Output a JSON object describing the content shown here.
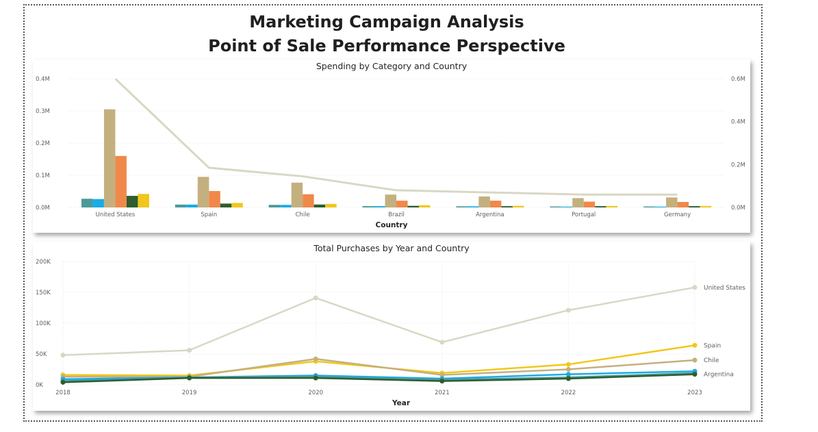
{
  "header": {
    "title_line1": "Marketing Campaign Analysis",
    "title_line2": "Point of Sale Performance Perspective"
  },
  "chart_data": [
    {
      "type": "bar",
      "title": "Spending by Category and Country",
      "xlabel": "Country",
      "ylabel": "",
      "categories": [
        "United States",
        "Spain",
        "Chile",
        "Brazil",
        "Argentina",
        "Portugal",
        "Germany"
      ],
      "series": [
        {
          "values": [
            27000,
            9000,
            8000,
            4000,
            3500,
            3000,
            3000
          ],
          "color": "#4a9a9a"
        },
        {
          "values": [
            26000,
            9000,
            8000,
            4000,
            3500,
            2500,
            2500
          ],
          "color": "#1aabe8"
        },
        {
          "values": [
            305000,
            95000,
            77000,
            40000,
            34000,
            29000,
            31000
          ],
          "color": "#c4b07e"
        },
        {
          "values": [
            160000,
            51000,
            41000,
            21000,
            21000,
            18000,
            17000
          ],
          "color": "#f0884a"
        },
        {
          "values": [
            36000,
            12000,
            9000,
            5000,
            4000,
            4000,
            4000
          ],
          "color": "#2e5d2e"
        },
        {
          "values": [
            42000,
            14000,
            11000,
            7000,
            5000,
            4500,
            4500
          ],
          "color": "#f2c71b"
        }
      ],
      "line": {
        "values": [
          600000,
          185000,
          145000,
          80000,
          70000,
          60000,
          60000
        ],
        "color": "#d9d7c4"
      },
      "ylim": [
        0,
        400000
      ],
      "y2lim": [
        0,
        600000
      ],
      "yticks": [
        "0.0M",
        "0.1M",
        "0.2M",
        "0.3M",
        "0.4M"
      ],
      "y2ticks": [
        "0.0M",
        "0.2M",
        "0.4M",
        "0.6M"
      ],
      "grid": true
    },
    {
      "type": "line",
      "title": "Total Purchases by Year and Country",
      "xlabel": "Year",
      "ylabel": "",
      "x": [
        "2018",
        "2019",
        "2020",
        "2021",
        "2022",
        "2023"
      ],
      "ylim": [
        0,
        200000
      ],
      "yticks": [
        "0K",
        "50K",
        "100K",
        "150K",
        "200K"
      ],
      "series": [
        {
          "name": "United States",
          "values": [
            48000,
            56000,
            141000,
            69000,
            121000,
            158000
          ],
          "color": "#d9d7c4"
        },
        {
          "name": "Spain",
          "values": [
            16000,
            15000,
            38000,
            19000,
            33000,
            64000
          ],
          "color": "#f2c71b"
        },
        {
          "name": "Chile",
          "values": [
            13000,
            13000,
            42000,
            16000,
            25000,
            40000
          ],
          "color": "#c4b07e"
        },
        {
          "name": "",
          "values": [
            9000,
            12000,
            15000,
            10000,
            17000,
            22000
          ],
          "color": "#1aabe8"
        },
        {
          "name": "",
          "values": [
            6000,
            12000,
            13000,
            8000,
            12000,
            19000
          ],
          "color": "#4a9a9a"
        },
        {
          "name": "Argentina",
          "values": [
            4000,
            11000,
            11000,
            6000,
            10000,
            17000
          ],
          "color": "#2e5d2e"
        }
      ],
      "grid": true
    }
  ]
}
